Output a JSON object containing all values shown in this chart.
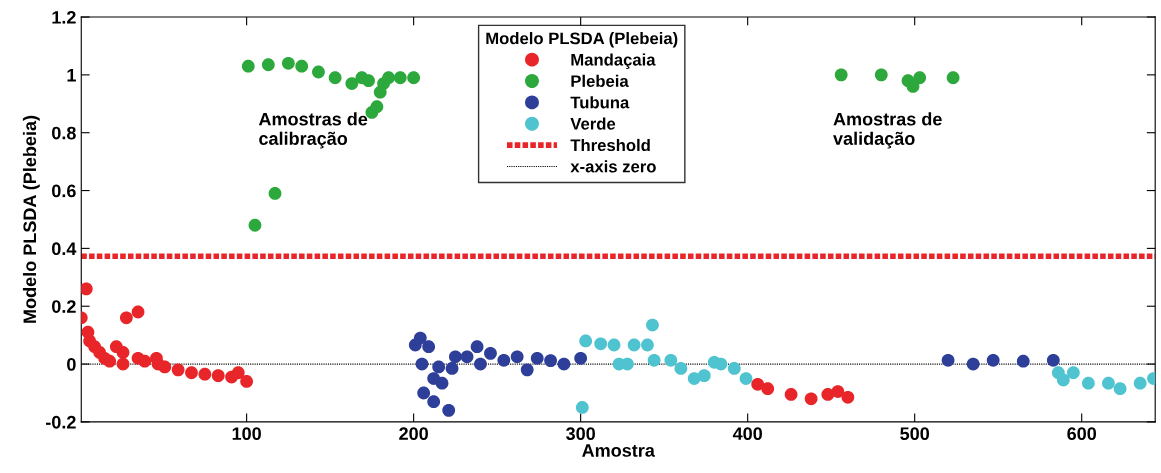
{
  "chart_data": {
    "type": "scatter",
    "xlabel": "Amostra",
    "ylabel": "Modelo PLSDA (Plebeia)",
    "legend_title": "Modelo PLSDA (Plebeia)",
    "series": [
      {
        "name": "Mandaçaia",
        "color": "#e8262a",
        "x": [
          1,
          4,
          5,
          6,
          9,
          12,
          15,
          18,
          22,
          26,
          26,
          28,
          35,
          35,
          39,
          46,
          47,
          51,
          59,
          67,
          75,
          83,
          91,
          95,
          100,
          406,
          412,
          426,
          438,
          448,
          454,
          460
        ],
        "values": [
          0.16,
          0.26,
          0.11,
          0.08,
          0.06,
          0.04,
          0.02,
          0.01,
          0.06,
          0.04,
          0.0,
          0.16,
          0.18,
          0.02,
          0.01,
          0.02,
          0.0,
          -0.01,
          -0.02,
          -0.03,
          -0.035,
          -0.04,
          -0.045,
          -0.03,
          -0.06,
          -0.07,
          -0.085,
          -0.105,
          -0.12,
          -0.105,
          -0.095,
          -0.115
        ]
      },
      {
        "name": "Plebeia",
        "color": "#2ca83c",
        "x": [
          101,
          105,
          113,
          117,
          125,
          133,
          143,
          153,
          163,
          169,
          173,
          175,
          178,
          180,
          182,
          185,
          192,
          200,
          456,
          480,
          496,
          499,
          503,
          523
        ],
        "values": [
          1.03,
          0.48,
          1.035,
          0.59,
          1.04,
          1.03,
          1.01,
          0.99,
          0.97,
          0.99,
          0.98,
          0.87,
          0.89,
          0.94,
          0.97,
          0.99,
          0.99,
          0.99,
          1.0,
          1.0,
          0.98,
          0.96,
          0.99,
          0.99
        ]
      },
      {
        "name": "Tubuna",
        "color": "#2e3f9a",
        "x": [
          201,
          204,
          205,
          206,
          209,
          212,
          212,
          215,
          217,
          221,
          223,
          225,
          232,
          238,
          240,
          246,
          254,
          262,
          268,
          274,
          282,
          290,
          300,
          520,
          535,
          547,
          565,
          583
        ],
        "values": [
          0.066,
          0.09,
          0.0,
          -0.1,
          0.06,
          -0.13,
          -0.05,
          -0.01,
          -0.066,
          -0.16,
          -0.015,
          0.025,
          0.025,
          0.06,
          0.0,
          0.037,
          0.013,
          0.025,
          -0.02,
          0.02,
          0.012,
          0.0,
          0.02,
          0.013,
          0.0,
          0.013,
          0.01,
          0.013
        ]
      },
      {
        "name": "Verde",
        "color": "#4fc3cf",
        "x": [
          301,
          303,
          312,
          320,
          323,
          328,
          332,
          340,
          343,
          344,
          354,
          360,
          368,
          374,
          380,
          384,
          392,
          399,
          586,
          589,
          595,
          604,
          616,
          623,
          635,
          643
        ],
        "values": [
          -0.15,
          0.08,
          0.07,
          0.066,
          0.0,
          0.0,
          0.066,
          0.066,
          0.135,
          0.013,
          0.013,
          -0.015,
          -0.05,
          -0.04,
          0.006,
          0.0,
          -0.015,
          -0.05,
          -0.03,
          -0.055,
          -0.03,
          -0.066,
          -0.066,
          -0.085,
          -0.066,
          -0.05
        ]
      }
    ],
    "ref_lines": [
      {
        "axis": "y",
        "value": 0.373,
        "label": "Threshold",
        "color": "#e8262a",
        "line_style": "dashed"
      },
      {
        "axis": "y",
        "value": 0,
        "label": "x-axis zero",
        "color": "#000000",
        "line_style": "dotted"
      }
    ],
    "annotations": [
      "Amostras de\ncalibração",
      "Amostras de\nvalidação"
    ],
    "xlim": [
      1,
      644
    ],
    "xticks": [
      100,
      200,
      300,
      400,
      500,
      600
    ],
    "ylim": [
      -0.2,
      1.2
    ],
    "yticks": [
      -0.2,
      0,
      0.2,
      0.4,
      0.6,
      0.8,
      1,
      1.2
    ],
    "marker": "circle",
    "grid": false,
    "legend": "top"
  }
}
